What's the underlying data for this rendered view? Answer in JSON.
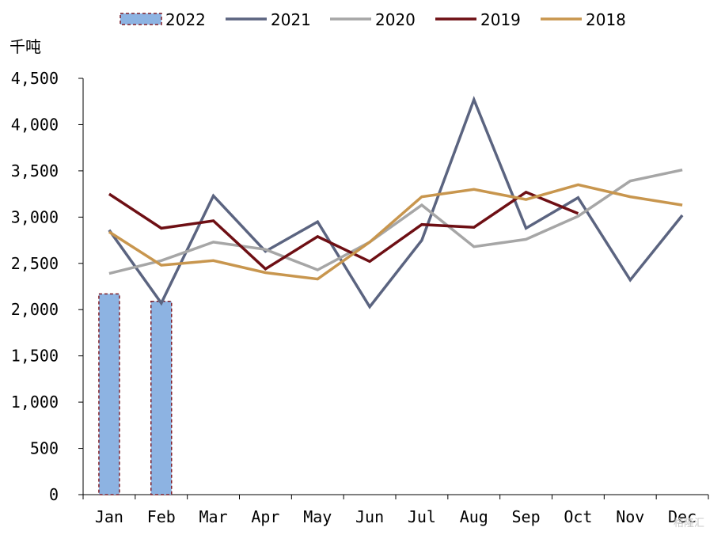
{
  "chart_data": {
    "type": "bar+line",
    "y_unit_label": "千吨",
    "categories": [
      "Jan",
      "Feb",
      "Mar",
      "Apr",
      "May",
      "Jun",
      "Jul",
      "Aug",
      "Sep",
      "Oct",
      "Nov",
      "Dec"
    ],
    "ylim": [
      0,
      4500
    ],
    "yticks": [
      0,
      500,
      1000,
      1500,
      2000,
      2500,
      3000,
      3500,
      4000,
      4500
    ],
    "ytick_labels": [
      "0",
      "500",
      "1,000",
      "1,500",
      "2,000",
      "2,500",
      "3,000",
      "3,500",
      "4,000",
      "4,500"
    ],
    "grid": false,
    "legend_position": "top",
    "bar_series": {
      "name": "2022",
      "values": [
        2170,
        2090
      ],
      "fill": "#8db3e2",
      "border": "#7f1f2a"
    },
    "line_series": [
      {
        "name": "2021",
        "color": "#5b6480",
        "values": [
          2860,
          2070,
          3230,
          2630,
          2950,
          2030,
          2750,
          4270,
          2880,
          3210,
          2320,
          3020
        ]
      },
      {
        "name": "2020",
        "color": "#a6a6a6",
        "values": [
          2390,
          2530,
          2730,
          2650,
          2430,
          2730,
          3130,
          2680,
          2760,
          3010,
          3390,
          3510
        ]
      },
      {
        "name": "2019",
        "color": "#6e0f14",
        "values": [
          3250,
          2880,
          2960,
          2440,
          2790,
          2520,
          2920,
          2890,
          3270,
          3040,
          null,
          null
        ]
      },
      {
        "name": "2018",
        "color": "#c8964e",
        "values": [
          2840,
          2480,
          2530,
          2400,
          2330,
          2730,
          3220,
          3300,
          3190,
          3350,
          3220,
          3130
        ]
      }
    ],
    "legend_order": [
      "2022",
      "2021",
      "2020",
      "2019",
      "2018"
    ]
  },
  "watermark": "格隆汇"
}
